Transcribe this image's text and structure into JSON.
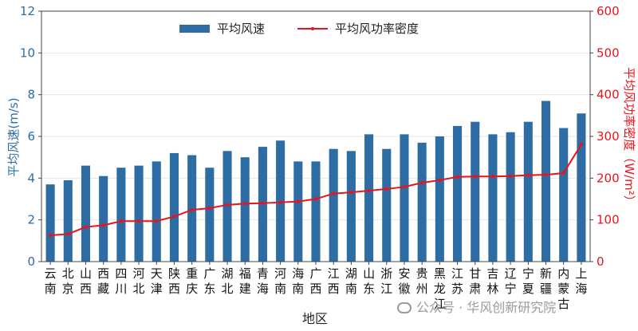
{
  "chart_data": {
    "type": "bar",
    "xlabel": "地区",
    "ylabel_left": "平均风速(m/s)",
    "ylabel_right": "平均风功率密度（W/m²）",
    "ylim_left": [
      0,
      12
    ],
    "ylim_right": [
      0,
      600
    ],
    "yticks_left": [
      0,
      2,
      4,
      6,
      8,
      10,
      12
    ],
    "yticks_right": [
      0,
      100,
      200,
      300,
      400,
      500,
      600
    ],
    "legend_position": "top-center",
    "grid": true,
    "categories": [
      "云南",
      "北京",
      "山西",
      "西藏",
      "四川",
      "河北",
      "天津",
      "陕西",
      "重庆",
      "广东",
      "湖北",
      "福建",
      "青海",
      "河南",
      "海南",
      "广西",
      "江西",
      "湖南",
      "山东",
      "浙江",
      "安徽",
      "贵州",
      "黑龙江",
      "江苏",
      "甘肃",
      "吉林",
      "辽宁",
      "宁夏",
      "新疆",
      "内蒙古",
      "上海"
    ],
    "series": [
      {
        "name": "平均风速",
        "type": "bar",
        "axis": "left",
        "color": "#2e6da4",
        "values": [
          3.7,
          3.9,
          4.6,
          4.1,
          4.5,
          4.6,
          4.8,
          5.2,
          5.1,
          4.5,
          5.3,
          5.0,
          5.5,
          5.8,
          4.8,
          4.8,
          5.4,
          5.3,
          6.1,
          5.4,
          6.1,
          5.7,
          6.0,
          6.5,
          6.7,
          6.1,
          6.2,
          6.7,
          7.7,
          6.4,
          7.1
        ]
      },
      {
        "name": "平均风功率密度",
        "type": "line",
        "axis": "right",
        "color": "#e8141c",
        "values": [
          63,
          66,
          83,
          87,
          97,
          97,
          97,
          108,
          124,
          128,
          136,
          139,
          140,
          142,
          144,
          150,
          163,
          166,
          170,
          174,
          179,
          189,
          195,
          203,
          204,
          204,
          205,
          207,
          208,
          212,
          281
        ]
      }
    ]
  },
  "watermark": {
    "text": "公众号 · 华风创新研究院",
    "icon": "wechat-icon"
  }
}
